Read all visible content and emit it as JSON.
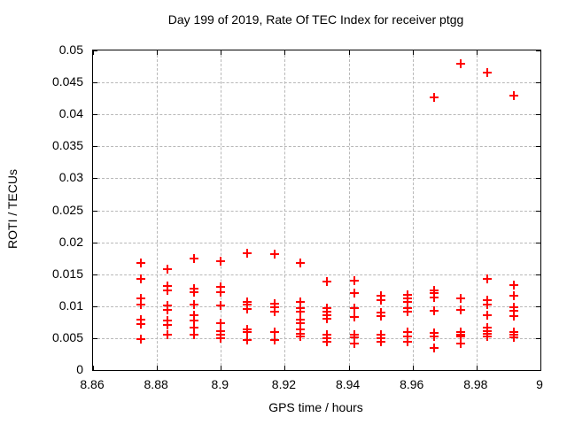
{
  "chart_data": {
    "type": "scatter",
    "title": "Day 199 of 2019, Rate Of TEC Index for receiver ptgg",
    "xlabel": "GPS time / hours",
    "ylabel": "ROTI / TECUs",
    "xlim": [
      8.86,
      9.0
    ],
    "ylim": [
      0,
      0.05
    ],
    "xticks": [
      {
        "v": 8.86,
        "label": "8.86"
      },
      {
        "v": 8.88,
        "label": "8.88"
      },
      {
        "v": 8.9,
        "label": "8.9"
      },
      {
        "v": 8.92,
        "label": "8.92"
      },
      {
        "v": 8.94,
        "label": "8.94"
      },
      {
        "v": 8.96,
        "label": "8.96"
      },
      {
        "v": 8.98,
        "label": "8.98"
      },
      {
        "v": 9.0,
        "label": "9"
      }
    ],
    "yticks": [
      {
        "v": 0,
        "label": "0"
      },
      {
        "v": 0.005,
        "label": "0.005"
      },
      {
        "v": 0.01,
        "label": "0.01"
      },
      {
        "v": 0.015,
        "label": "0.015"
      },
      {
        "v": 0.02,
        "label": "0.02"
      },
      {
        "v": 0.025,
        "label": "0.025"
      },
      {
        "v": 0.03,
        "label": "0.03"
      },
      {
        "v": 0.035,
        "label": "0.035"
      },
      {
        "v": 0.04,
        "label": "0.04"
      },
      {
        "v": 0.045,
        "label": "0.045"
      },
      {
        "v": 0.05,
        "label": "0.05"
      }
    ],
    "grid": true,
    "legend_position": "none",
    "marker": "plus",
    "marker_color": "#ff0000",
    "grid_color": "#b8b8b8",
    "series": [
      {
        "name": "ROTI",
        "points": [
          [
            8.875,
            0.0167
          ],
          [
            8.875,
            0.0142
          ],
          [
            8.875,
            0.0112
          ],
          [
            8.875,
            0.0102
          ],
          [
            8.875,
            0.0079
          ],
          [
            8.875,
            0.0072
          ],
          [
            8.875,
            0.0048
          ],
          [
            8.8833,
            0.0158
          ],
          [
            8.8833,
            0.0132
          ],
          [
            8.8833,
            0.0124
          ],
          [
            8.8833,
            0.0101
          ],
          [
            8.8833,
            0.0094
          ],
          [
            8.8833,
            0.0077
          ],
          [
            8.8833,
            0.007
          ],
          [
            8.8833,
            0.0056
          ],
          [
            8.8917,
            0.0175
          ],
          [
            8.8917,
            0.0128
          ],
          [
            8.8917,
            0.0122
          ],
          [
            8.8917,
            0.0103
          ],
          [
            8.8917,
            0.0086
          ],
          [
            8.8917,
            0.0077
          ],
          [
            8.8917,
            0.0067
          ],
          [
            8.8917,
            0.0056
          ],
          [
            8.9,
            0.017
          ],
          [
            8.9,
            0.013
          ],
          [
            8.9,
            0.0122
          ],
          [
            8.9,
            0.0101
          ],
          [
            8.9,
            0.0073
          ],
          [
            8.9,
            0.0061
          ],
          [
            8.9,
            0.0056
          ],
          [
            8.9,
            0.005
          ],
          [
            8.9083,
            0.0183
          ],
          [
            8.9083,
            0.0107
          ],
          [
            8.9083,
            0.0102
          ],
          [
            8.9083,
            0.0096
          ],
          [
            8.9083,
            0.0064
          ],
          [
            8.9083,
            0.0059
          ],
          [
            8.9083,
            0.0047
          ],
          [
            8.9167,
            0.0181
          ],
          [
            8.9167,
            0.0104
          ],
          [
            8.9167,
            0.0098
          ],
          [
            8.9167,
            0.0092
          ],
          [
            8.9167,
            0.006
          ],
          [
            8.9167,
            0.0047
          ],
          [
            8.925,
            0.0168
          ],
          [
            8.925,
            0.0106
          ],
          [
            8.925,
            0.0097
          ],
          [
            8.925,
            0.0092
          ],
          [
            8.925,
            0.0079
          ],
          [
            8.925,
            0.0073
          ],
          [
            8.925,
            0.0064
          ],
          [
            8.925,
            0.0057
          ],
          [
            8.925,
            0.0052
          ],
          [
            8.9333,
            0.0138
          ],
          [
            8.9333,
            0.0097
          ],
          [
            8.9333,
            0.0092
          ],
          [
            8.9333,
            0.0086
          ],
          [
            8.9333,
            0.008
          ],
          [
            8.9333,
            0.0056
          ],
          [
            8.9333,
            0.005
          ],
          [
            8.9333,
            0.0044
          ],
          [
            8.9417,
            0.014
          ],
          [
            8.9417,
            0.012
          ],
          [
            8.9417,
            0.0097
          ],
          [
            8.9417,
            0.0083
          ],
          [
            8.9417,
            0.0056
          ],
          [
            8.9417,
            0.0051
          ],
          [
            8.9417,
            0.0041
          ],
          [
            8.95,
            0.0116
          ],
          [
            8.95,
            0.011
          ],
          [
            8.95,
            0.009
          ],
          [
            8.95,
            0.0085
          ],
          [
            8.95,
            0.0056
          ],
          [
            8.95,
            0.005
          ],
          [
            8.95,
            0.0044
          ],
          [
            8.9583,
            0.0118
          ],
          [
            8.9583,
            0.0112
          ],
          [
            8.9583,
            0.0107
          ],
          [
            8.9583,
            0.0097
          ],
          [
            8.9583,
            0.0092
          ],
          [
            8.9583,
            0.006
          ],
          [
            8.9583,
            0.0053
          ],
          [
            8.9583,
            0.0044
          ],
          [
            8.9667,
            0.0426
          ],
          [
            8.9667,
            0.0125
          ],
          [
            8.9667,
            0.012
          ],
          [
            8.9667,
            0.0114
          ],
          [
            8.9667,
            0.0093
          ],
          [
            8.9667,
            0.0058
          ],
          [
            8.9667,
            0.0053
          ],
          [
            8.9667,
            0.0035
          ],
          [
            8.975,
            0.0479
          ],
          [
            8.975,
            0.0112
          ],
          [
            8.975,
            0.0094
          ],
          [
            8.975,
            0.006
          ],
          [
            8.975,
            0.0056
          ],
          [
            8.975,
            0.0052
          ],
          [
            8.975,
            0.0041
          ],
          [
            8.9833,
            0.0466
          ],
          [
            8.9833,
            0.0142
          ],
          [
            8.9833,
            0.0109
          ],
          [
            8.9833,
            0.0103
          ],
          [
            8.9833,
            0.0086
          ],
          [
            8.9833,
            0.0066
          ],
          [
            8.9833,
            0.0061
          ],
          [
            8.9833,
            0.0057
          ],
          [
            8.9833,
            0.0052
          ],
          [
            8.9917,
            0.0429
          ],
          [
            8.9917,
            0.0133
          ],
          [
            8.9917,
            0.0117
          ],
          [
            8.9917,
            0.0098
          ],
          [
            8.9917,
            0.0093
          ],
          [
            8.9917,
            0.0085
          ],
          [
            8.9917,
            0.006
          ],
          [
            8.9917,
            0.0056
          ],
          [
            8.9917,
            0.0051
          ]
        ]
      }
    ]
  }
}
